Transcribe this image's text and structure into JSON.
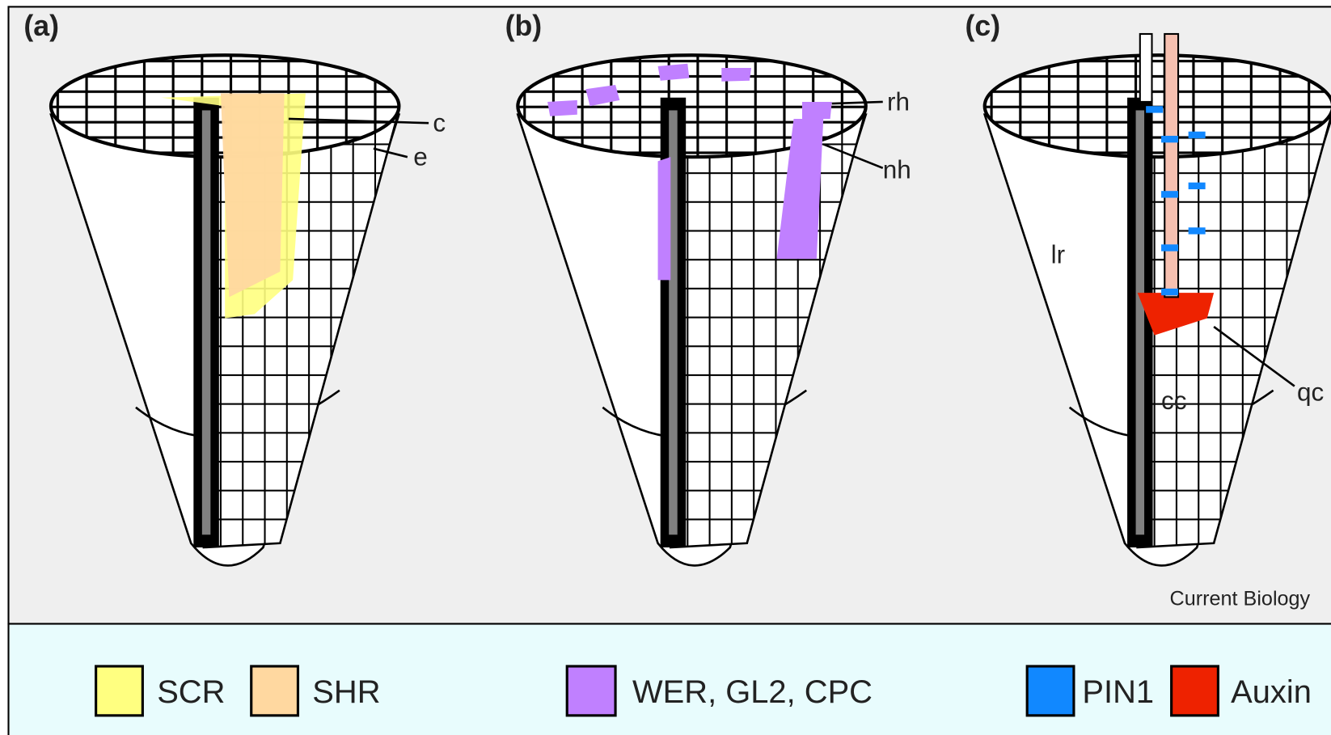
{
  "panels": [
    {
      "label": "(a)",
      "annotations": [
        "c",
        "e"
      ]
    },
    {
      "label": "(b)",
      "annotations": [
        "rh",
        "nh"
      ]
    },
    {
      "label": "(c)",
      "annotations": [
        "lr",
        "qc",
        "cc"
      ]
    }
  ],
  "credit": "Current Biology",
  "legend": [
    {
      "label": "SCR"
    },
    {
      "label": "SHR"
    },
    {
      "label": "WER, GL2, CPC"
    },
    {
      "label": "PIN1"
    },
    {
      "label": "Auxin"
    }
  ]
}
